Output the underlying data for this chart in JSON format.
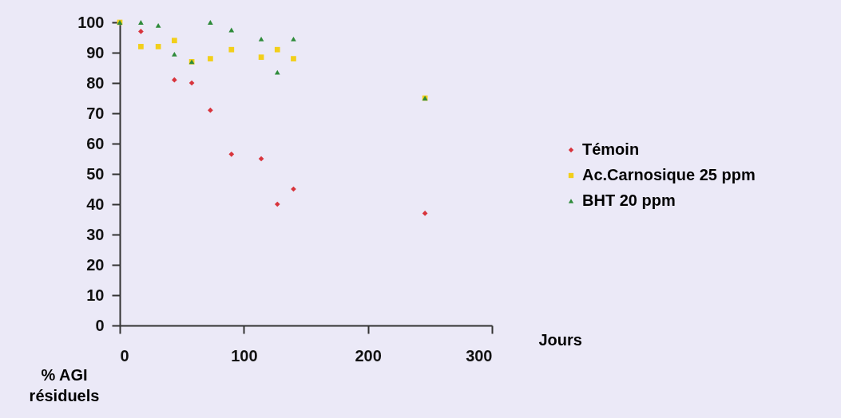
{
  "chart_data": {
    "type": "scatter",
    "xlabel": "Jours",
    "ylabel": "% AGI résiduels",
    "x": [
      0,
      17,
      31,
      44,
      58,
      73,
      90,
      114,
      127,
      140,
      246
    ],
    "series": [
      {
        "name": "Témoin",
        "color": "#d8343c",
        "marker": "diamond",
        "values": [
          null,
          97,
          null,
          81,
          80,
          71,
          56.5,
          55,
          40,
          45,
          37
        ]
      },
      {
        "name": "Ac.Carnosique 25 ppm",
        "color": "#f2cf1a",
        "marker": "square",
        "values": [
          100,
          92,
          92,
          94,
          87,
          88,
          91,
          88.5,
          91,
          88,
          75
        ]
      },
      {
        "name": "BHT 20 ppm",
        "color": "#2e8b3a",
        "marker": "triangle",
        "values": [
          100,
          100,
          99,
          89.5,
          87,
          100,
          97.5,
          94.5,
          83.5,
          94.5,
          75
        ]
      }
    ],
    "xlim": [
      0,
      300
    ],
    "xticks": [
      0,
      100,
      200,
      300
    ],
    "ylim": [
      0,
      100
    ],
    "yticks": [
      0,
      10,
      20,
      30,
      40,
      50,
      60,
      70,
      80,
      90,
      100
    ],
    "grid": false,
    "legend": "right"
  }
}
